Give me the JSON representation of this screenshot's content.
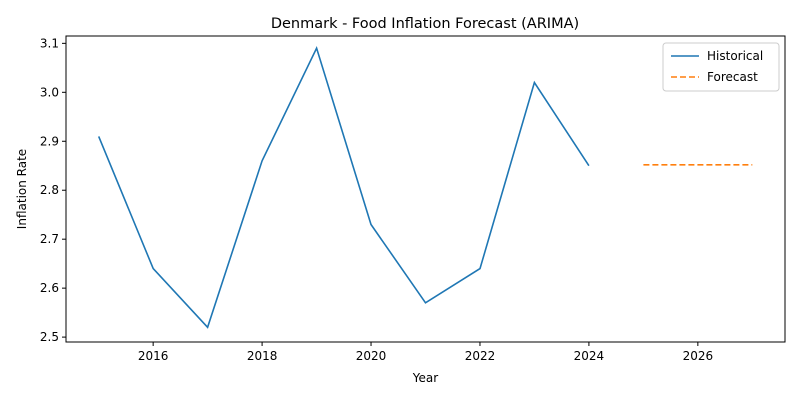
{
  "chart_data": {
    "type": "line",
    "title": "Denmark - Food Inflation Forecast (ARIMA)",
    "xlabel": "Year",
    "ylabel": "Inflation Rate",
    "xlim": [
      2014.4,
      2027.6
    ],
    "ylim": [
      2.49,
      3.115
    ],
    "xticks": [
      2016,
      2018,
      2020,
      2022,
      2024,
      2026
    ],
    "yticks": [
      2.5,
      2.6,
      2.7,
      2.8,
      2.9,
      3.0,
      3.1
    ],
    "grid": false,
    "legend_position": "top-right",
    "series": [
      {
        "name": "Historical",
        "style": "solid",
        "color": "#1f77b4",
        "x": [
          2015,
          2016,
          2017,
          2018,
          2019,
          2020,
          2021,
          2022,
          2023,
          2024
        ],
        "y": [
          2.91,
          2.64,
          2.52,
          2.86,
          3.09,
          2.73,
          2.57,
          2.64,
          3.02,
          2.85
        ]
      },
      {
        "name": "Forecast",
        "style": "dashed",
        "color": "#ff7f0e",
        "x": [
          2025,
          2026,
          2027
        ],
        "y": [
          2.852,
          2.852,
          2.852
        ]
      }
    ]
  }
}
